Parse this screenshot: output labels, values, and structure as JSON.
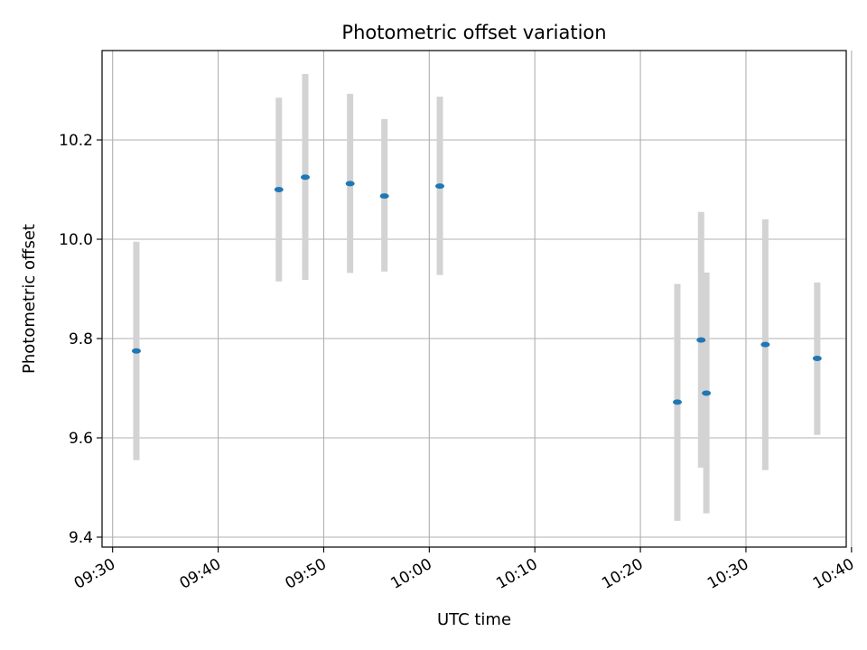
{
  "chart_data": {
    "type": "scatter",
    "title": "Photometric offset variation",
    "xlabel": "UTC time",
    "ylabel": "Photometric offset",
    "x_ticks": [
      "09:30",
      "09:40",
      "09:50",
      "10:00",
      "10:10",
      "10:20",
      "10:30",
      "10:40"
    ],
    "y_ticks": [
      "9.4",
      "9.6",
      "9.8",
      "10.0",
      "10.2"
    ],
    "x_range": [
      "09:29:00",
      "10:39:30"
    ],
    "ylim": [
      9.38,
      10.38
    ],
    "grid": true,
    "colors": {
      "point": "#1f77b4",
      "errorbar": "#d3d3d3"
    },
    "points": [
      {
        "time": "09:32:15",
        "y": 9.775,
        "ylow": 9.555,
        "yhigh": 9.995
      },
      {
        "time": "09:45:45",
        "y": 10.1,
        "ylow": 9.915,
        "yhigh": 10.285
      },
      {
        "time": "09:48:15",
        "y": 10.125,
        "ylow": 9.918,
        "yhigh": 10.333
      },
      {
        "time": "09:52:30",
        "y": 10.112,
        "ylow": 9.932,
        "yhigh": 10.293
      },
      {
        "time": "09:55:45",
        "y": 10.087,
        "ylow": 9.935,
        "yhigh": 10.242
      },
      {
        "time": "10:01:00",
        "y": 10.107,
        "ylow": 9.928,
        "yhigh": 10.287
      },
      {
        "time": "10:23:30",
        "y": 9.672,
        "ylow": 9.433,
        "yhigh": 9.91
      },
      {
        "time": "10:25:45",
        "y": 9.797,
        "ylow": 9.54,
        "yhigh": 10.055
      },
      {
        "time": "10:26:15",
        "y": 9.69,
        "ylow": 9.448,
        "yhigh": 9.933
      },
      {
        "time": "10:31:50",
        "y": 9.788,
        "ylow": 9.535,
        "yhigh": 10.04
      },
      {
        "time": "10:36:45",
        "y": 9.76,
        "ylow": 9.606,
        "yhigh": 9.913
      }
    ]
  }
}
